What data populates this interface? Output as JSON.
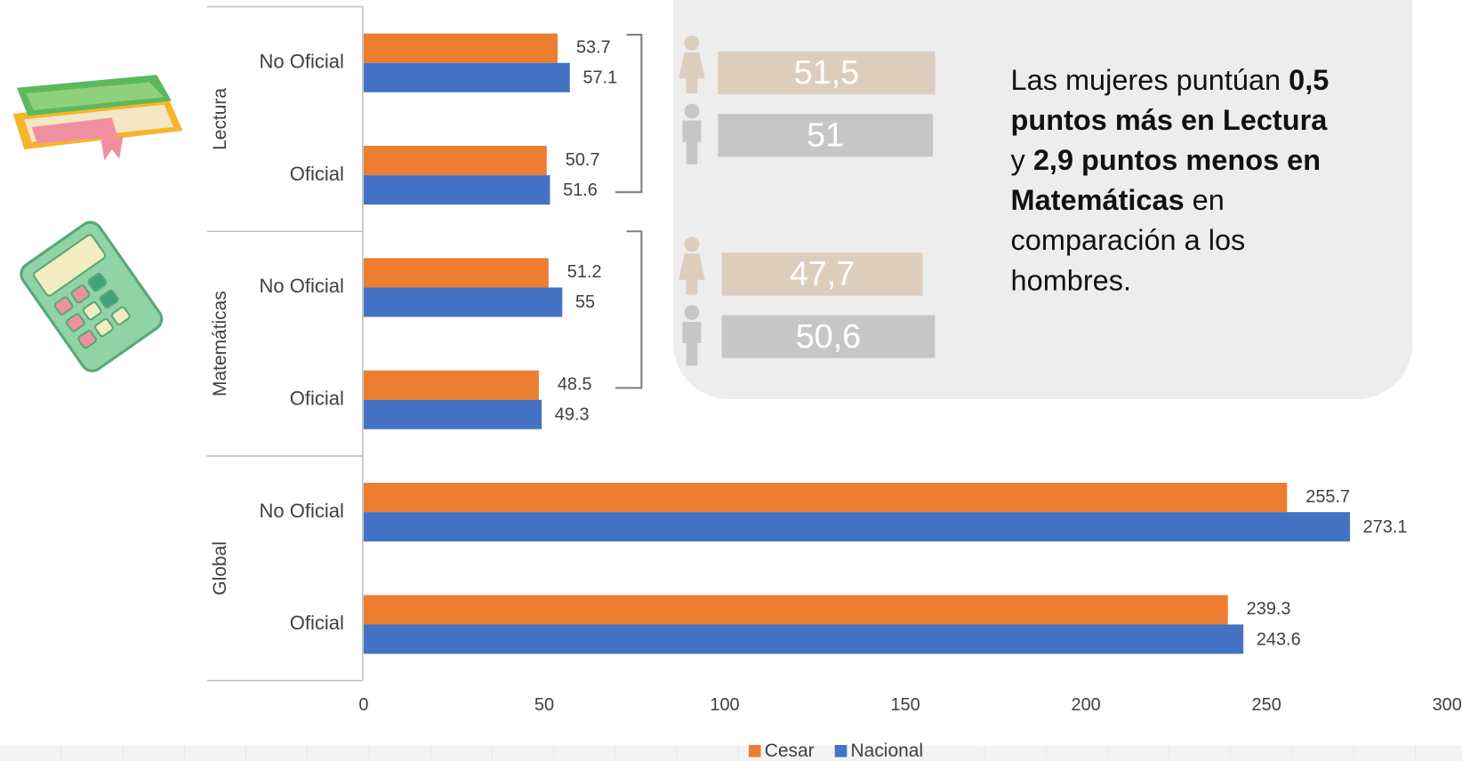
{
  "chart_data": {
    "type": "bar",
    "orientation": "horizontal",
    "groups": [
      "Lectura",
      "Matemáticas",
      "Global"
    ],
    "categories": [
      "No Oficial",
      "Oficial",
      "No Oficial",
      "Oficial",
      "No Oficial",
      "Oficial"
    ],
    "series": [
      {
        "name": "Cesar",
        "color": "#ed7d31",
        "values": [
          53.7,
          50.7,
          51.2,
          48.5,
          255.7,
          239.3
        ]
      },
      {
        "name": "Nacional",
        "color": "#4472c4",
        "values": [
          57.1,
          51.6,
          55,
          49.3,
          273.1,
          243.6
        ]
      }
    ],
    "xlim": [
      0,
      300
    ],
    "xticks": [
      0,
      50,
      100,
      150,
      200,
      250,
      300
    ],
    "grid": false,
    "legend": "bottom"
  },
  "gender_bars": {
    "values": [
      51.5,
      51,
      47.7,
      50.6
    ],
    "value_labels": [
      "51,5",
      "51",
      "47,7",
      "50,6"
    ],
    "colors": [
      "#dccdbd",
      "#c6c6c6",
      "#dccdbd",
      "#c6c6c6"
    ]
  },
  "annotation": [
    {
      "text": "Las mujeres puntúan ",
      "bold": false
    },
    {
      "text": "0,5 puntos más en Lectura",
      "bold": true
    },
    {
      "text": " y ",
      "bold": false
    },
    {
      "text": "2,9 puntos menos en Matemáticas",
      "bold": true
    },
    {
      "text": " en comparación a los hombres.",
      "bold": false
    }
  ]
}
